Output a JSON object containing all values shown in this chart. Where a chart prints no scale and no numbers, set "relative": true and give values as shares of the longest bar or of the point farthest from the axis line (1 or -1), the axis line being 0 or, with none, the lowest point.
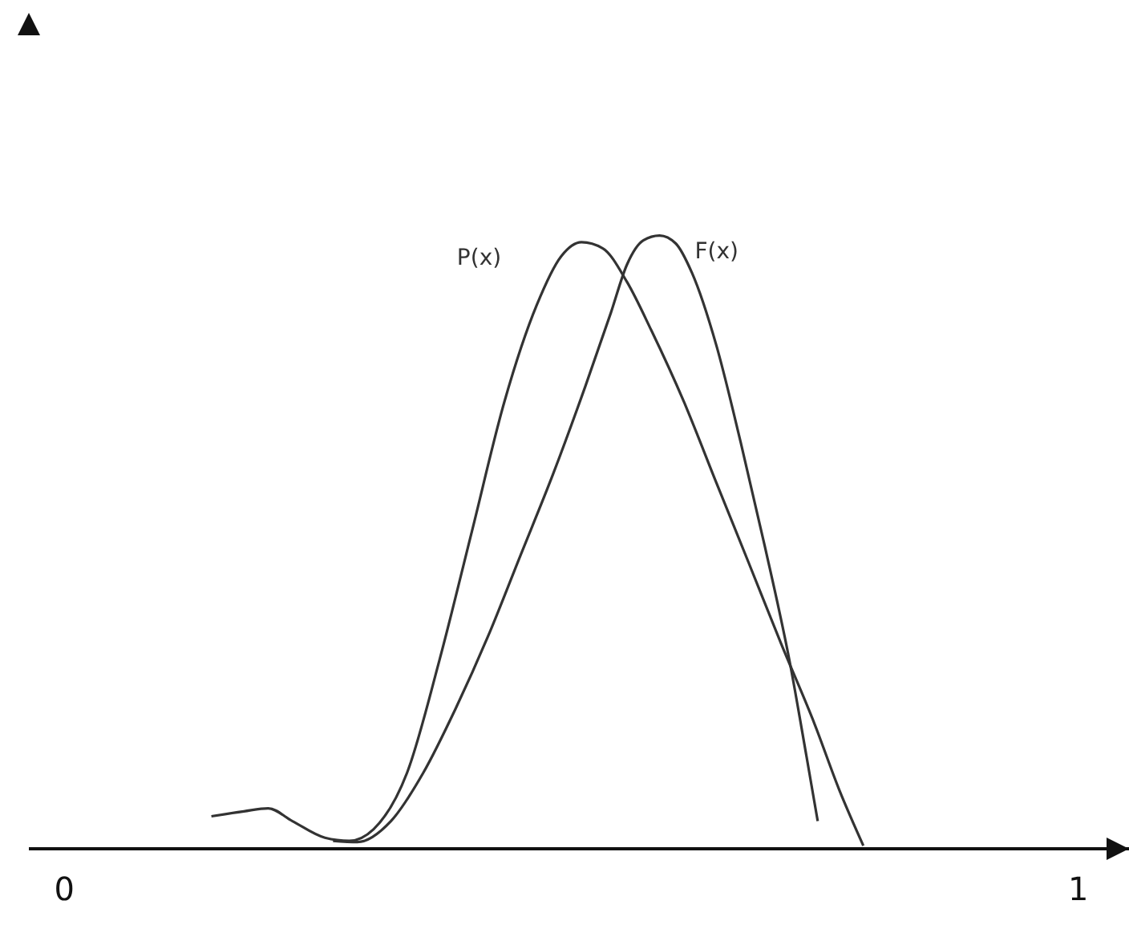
{
  "chart_data": {
    "type": "line",
    "relative": true,
    "xlim": [
      -0.035,
      1.05
    ],
    "xticks": [
      0,
      1
    ],
    "tick_labels": "x",
    "marker": "none",
    "line_style": "solid",
    "series": [
      {
        "name": "P(x)",
        "color": "#333333",
        "x": [
          0.145,
          0.177,
          0.201,
          0.225,
          0.257,
          0.281,
          0.305,
          0.338,
          0.37,
          0.402,
          0.434,
          0.466,
          0.49,
          0.51,
          0.531,
          0.555,
          0.579,
          0.611,
          0.643,
          0.675,
          0.707,
          0.74,
          0.764,
          0.788
        ],
        "values": [
          0.053,
          0.061,
          0.066,
          0.045,
          0.018,
          0.013,
          0.032,
          0.124,
          0.308,
          0.518,
          0.729,
          0.887,
          0.966,
          0.989,
          0.979,
          0.924,
          0.845,
          0.729,
          0.597,
          0.466,
          0.334,
          0.203,
          0.097,
          0.005
        ]
      },
      {
        "name": "F(x)",
        "color": "#333333",
        "x": [
          0.265,
          0.289,
          0.322,
          0.354,
          0.386,
          0.418,
          0.45,
          0.482,
          0.514,
          0.539,
          0.555,
          0.571,
          0.587,
          0.603,
          0.619,
          0.643,
          0.667,
          0.691,
          0.715,
          0.732,
          0.743
        ],
        "values": [
          0.013,
          0.011,
          0.045,
          0.124,
          0.229,
          0.347,
          0.479,
          0.611,
          0.755,
          0.874,
          0.953,
          0.992,
          1,
          0.987,
          0.939,
          0.821,
          0.663,
          0.492,
          0.308,
          0.15,
          0.045
        ]
      }
    ]
  }
}
